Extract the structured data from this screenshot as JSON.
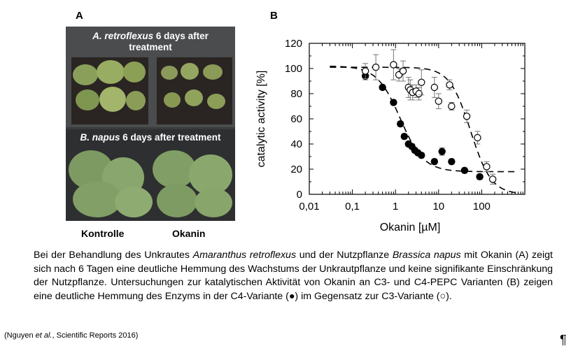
{
  "panels": {
    "a": "A",
    "b": "B"
  },
  "photo": {
    "top_caption_species": "A. retroflexus",
    "top_caption_rest": " 6 days after",
    "top_caption_line2": "treatment",
    "bottom_caption_species": "B. napus",
    "bottom_caption_rest": " 6 days after treatment",
    "label_left": "Kontrolle",
    "label_right": "Okanin"
  },
  "caption": {
    "t1": "Bei der Behandlung des Unkrautes ",
    "i1": "Amaranthus retroflexus",
    "t2": " und der Nutzpflanze ",
    "i2": "Brassica napus",
    "t3": " mit Okanin (A) zeigt sich nach 6 Tagen eine deutliche Hemmung des Wachstums der Unkrautpflanze und keine signifikante Einschränkung der Nutzpflanze. Untersuchungen zur katalytischen Aktivität von Okanin an C3- und C4-PEPC Varianten (B) zeigen eine deutliche Hemmung des Enzyms in der C4-Variante (●) im Gegensatz zur C3-Variante (○)."
  },
  "reference": {
    "pre": "(Nguyen ",
    "italic": "et al.",
    "post": ", Scientific Reports 2016)"
  },
  "pilcrow": "¶",
  "chart_data": {
    "type": "scatter",
    "xlabel": "Okanin [µM]",
    "ylabel": "catalytic activity [%]",
    "xscale": "log",
    "xlim": [
      0.01,
      1000
    ],
    "ylim": [
      0,
      120
    ],
    "xticks": [
      {
        "v": 0.01,
        "label": "0,01"
      },
      {
        "v": 0.1,
        "label": "0,1"
      },
      {
        "v": 1,
        "label": "1"
      },
      {
        "v": 10,
        "label": "10"
      },
      {
        "v": 100,
        "label": "100"
      }
    ],
    "yticks": [
      0,
      20,
      40,
      60,
      80,
      100,
      120
    ],
    "series": [
      {
        "marker": "filled-circle",
        "x": [
          0.2,
          0.5,
          0.9,
          1.3,
          1.6,
          2.0,
          2.4,
          2.8,
          3.3,
          4.0,
          8.0,
          12.0,
          20.0,
          40.0,
          90.0
        ],
        "y": [
          94,
          85,
          73,
          56,
          46,
          40,
          38,
          35,
          33,
          31,
          26,
          34,
          26,
          19,
          14
        ],
        "err": [
          3,
          2,
          2,
          2,
          2,
          2,
          2,
          2,
          2,
          2,
          2,
          3,
          2,
          2,
          2
        ]
      },
      {
        "marker": "open-circle",
        "x": [
          0.2,
          0.35,
          0.9,
          1.2,
          1.5,
          2.0,
          2.2,
          2.5,
          3.0,
          3.5,
          4.0,
          8.0,
          10.0,
          18.0,
          20.0,
          45.0,
          80.0,
          130.0,
          180.0
        ],
        "y": [
          98,
          101,
          103,
          95,
          98,
          85,
          83,
          81,
          82,
          80,
          89,
          85,
          74,
          87,
          70,
          62,
          45,
          22,
          12
        ],
        "err": [
          6,
          10,
          12,
          5,
          8,
          8,
          8,
          6,
          5,
          5,
          10,
          8,
          6,
          4,
          3,
          5,
          5,
          4,
          4
        ]
      }
    ],
    "fits": [
      {
        "style": "dashed",
        "model": "logistic",
        "top": 102,
        "bottom": 18,
        "ic50": 1.3,
        "hill": 1.6
      },
      {
        "style": "dashed",
        "model": "logistic",
        "top": 101,
        "bottom": 0,
        "ic50": 55,
        "hill": 1.8
      }
    ]
  }
}
